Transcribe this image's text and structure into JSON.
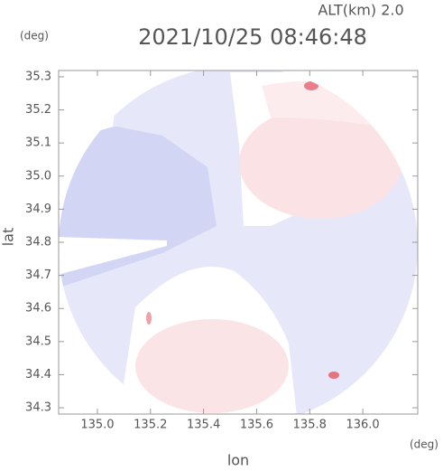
{
  "chart_data": {
    "type": "heatmap",
    "title": "2021/10/25 08:46:48",
    "subtitle": "ALT(km) 2.0",
    "y_unit": "(deg)",
    "x_unit": "(deg)",
    "ylabel": "lat",
    "xlabel": "lon",
    "xlim": [
      134.854,
      136.207
    ],
    "ylim": [
      34.281,
      35.319
    ],
    "xticks": [
      {
        "value": 135,
        "label": "135.0"
      },
      135.2,
      135.4,
      135.6,
      135.8,
      {
        "value": 136,
        "label": "136.0"
      }
    ],
    "yticks": [
      34.3,
      34.4,
      34.5,
      34.6,
      34.7,
      34.8,
      34.9,
      {
        "value": 35,
        "label": "35.0"
      },
      35.1,
      35.2,
      35.3
    ]
  }
}
